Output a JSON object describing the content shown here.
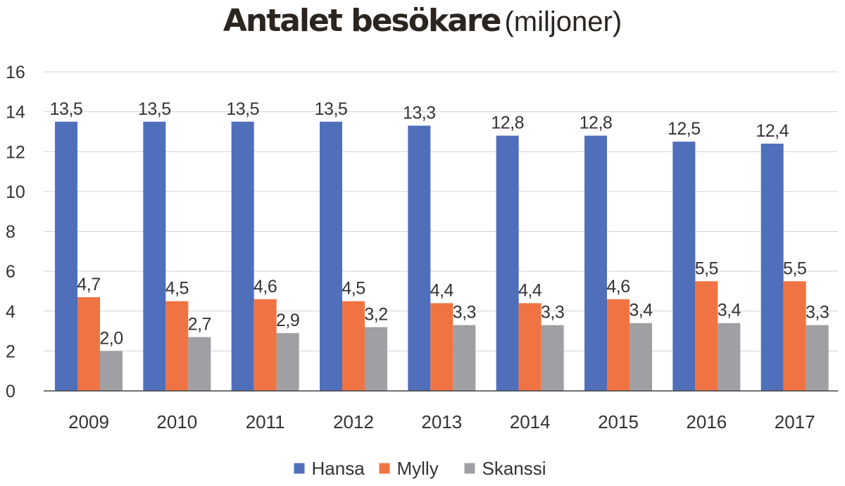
{
  "chart_data": {
    "type": "bar",
    "title": "Antalet besökare",
    "subtitle": "(miljoner)",
    "xlabel": "",
    "ylabel": "",
    "categories": [
      "2009",
      "2010",
      "2011",
      "2012",
      "2013",
      "2014",
      "2015",
      "2016",
      "2017"
    ],
    "series": [
      {
        "name": "Hansa",
        "color": "#4f6fbb",
        "values": [
          13.5,
          13.5,
          13.5,
          13.5,
          13.3,
          12.8,
          12.8,
          12.5,
          12.4
        ],
        "labels": [
          "13,5",
          "13,5",
          "13,5",
          "13,5",
          "13,3",
          "12,8",
          "12,8",
          "12,5",
          "12,4"
        ]
      },
      {
        "name": "Mylly",
        "color": "#f07443",
        "values": [
          4.7,
          4.5,
          4.6,
          4.5,
          4.4,
          4.4,
          4.6,
          5.5,
          5.5
        ],
        "labels": [
          "4,7",
          "4,5",
          "4,6",
          "4,5",
          "4,4",
          "4,4",
          "4,6",
          "5,5",
          "5,5"
        ]
      },
      {
        "name": "Skanssi",
        "color": "#a0a0a4",
        "values": [
          2.0,
          2.7,
          2.9,
          3.2,
          3.3,
          3.3,
          3.4,
          3.4,
          3.3
        ],
        "labels": [
          "2,0",
          "2,7",
          "2,9",
          "3,2",
          "3,3",
          "3,3",
          "3,4",
          "3,4",
          "3,3"
        ]
      }
    ],
    "ylim": [
      0,
      16
    ],
    "yticks": [
      0,
      2,
      4,
      6,
      8,
      10,
      12,
      14,
      16
    ],
    "grid": true,
    "legend_position": "bottom-center"
  }
}
